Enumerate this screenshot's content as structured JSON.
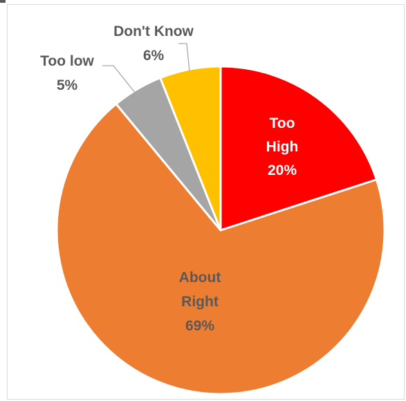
{
  "chart_data": {
    "type": "pie",
    "title": "",
    "start_angle_deg": 0,
    "direction": "clockwise",
    "slices": [
      {
        "label": "Too High",
        "label_lines": [
          "Too",
          "High"
        ],
        "percent_label": "20%",
        "value": 20,
        "color": "#ff0000",
        "label_color": "#ffffff",
        "label_placement": "inside"
      },
      {
        "label": "About Right",
        "label_lines": [
          "About",
          "Right"
        ],
        "percent_label": "69%",
        "value": 69,
        "color": "#ed7d31",
        "label_color": "#595959",
        "label_placement": "inside"
      },
      {
        "label": "Too low",
        "label_lines": [
          "Too low"
        ],
        "percent_label": "5%",
        "value": 5,
        "color": "#a5a5a5",
        "label_color": "#595959",
        "label_placement": "outside"
      },
      {
        "label": "Don't Know",
        "label_lines": [
          "Don't Know"
        ],
        "percent_label": "6%",
        "value": 6,
        "color": "#ffc000",
        "label_color": "#595959",
        "label_placement": "outside"
      }
    ],
    "slice_border_color": "#ffffff",
    "leader_line_color": "#a6a6a6",
    "legend": "none"
  }
}
